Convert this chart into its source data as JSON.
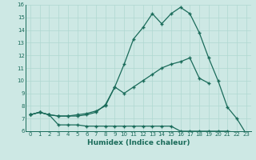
{
  "xlabel": "Humidex (Indice chaleur)",
  "background_color": "#cde8e4",
  "line_color": "#1a6b5a",
  "grid_color": "#b0d8d0",
  "xlim": [
    -0.5,
    23.5
  ],
  "ylim": [
    6,
    16
  ],
  "xticks": [
    0,
    1,
    2,
    3,
    4,
    5,
    6,
    7,
    8,
    9,
    10,
    11,
    12,
    13,
    14,
    15,
    16,
    17,
    18,
    19,
    20,
    21,
    22,
    23
  ],
  "yticks": [
    6,
    7,
    8,
    9,
    10,
    11,
    12,
    13,
    14,
    15,
    16
  ],
  "line1_x": [
    0,
    1,
    2,
    3,
    4,
    5,
    6,
    7,
    8,
    9,
    10,
    11,
    12,
    13,
    14,
    15,
    16,
    17,
    18,
    19,
    20,
    21,
    22,
    23
  ],
  "line1_y": [
    7.3,
    7.5,
    7.3,
    7.2,
    7.2,
    7.2,
    7.3,
    7.5,
    8.1,
    9.5,
    11.3,
    13.3,
    14.2,
    15.3,
    14.5,
    15.3,
    15.8,
    15.3,
    13.8,
    11.8,
    10.0,
    7.9,
    7.0,
    5.8
  ],
  "line2_x": [
    0,
    1,
    2,
    3,
    4,
    5,
    6,
    7,
    8,
    9,
    10,
    11,
    12,
    13,
    14,
    15,
    16,
    17,
    18,
    19
  ],
  "line2_y": [
    7.3,
    7.5,
    7.3,
    7.2,
    7.2,
    7.3,
    7.4,
    7.6,
    8.0,
    9.5,
    9.0,
    9.5,
    10.0,
    10.5,
    11.0,
    11.3,
    11.5,
    11.8,
    10.2,
    9.8
  ],
  "line3_x": [
    0,
    1,
    2,
    3,
    4,
    5,
    6,
    7,
    8,
    9,
    10,
    11,
    12,
    13,
    14,
    15,
    16,
    17,
    18,
    19,
    20,
    21,
    22,
    23
  ],
  "line3_y": [
    7.3,
    7.5,
    7.3,
    6.5,
    6.5,
    6.5,
    6.4,
    6.4,
    6.4,
    6.4,
    6.4,
    6.4,
    6.4,
    6.4,
    6.4,
    6.4,
    6.0,
    6.0,
    6.0,
    6.0,
    6.0,
    6.0,
    5.9,
    5.8
  ]
}
